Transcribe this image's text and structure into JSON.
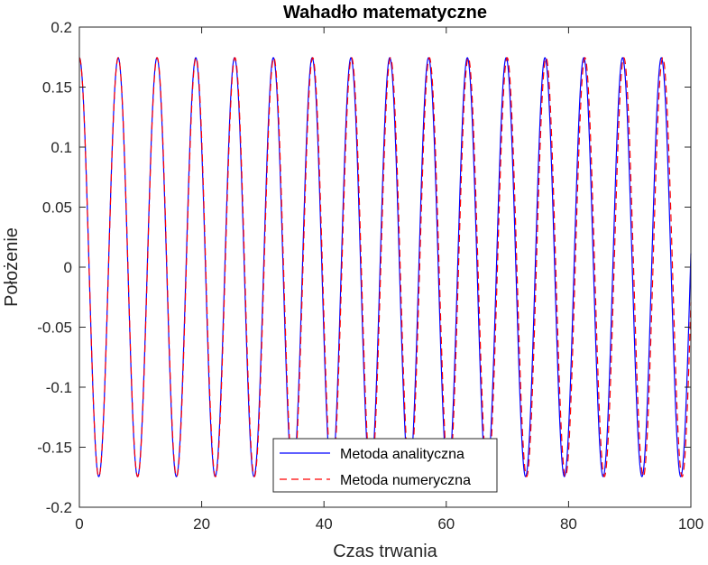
{
  "chart_data": {
    "type": "line",
    "title": "Wahadło matematyczne",
    "xlabel": "Czas trwania",
    "ylabel": "Położenie",
    "xlim": [
      0,
      100
    ],
    "ylim": [
      -0.2,
      0.2
    ],
    "xticks": [
      "0",
      "20",
      "40",
      "60",
      "80",
      "100"
    ],
    "yticks": [
      "-0.2",
      "-0.15",
      "-0.1",
      "-0.05",
      "0",
      "0.05",
      "0.1",
      "0.15",
      "0.2"
    ],
    "grid": false,
    "legend_position": "bottom-center",
    "series": [
      {
        "name": "Metoda analityczna",
        "style": "solid",
        "color": "#0000ff",
        "function": "amplitude*cos(2*pi*t/period)",
        "amplitude": 0.1745,
        "period": 6.345,
        "t_range": [
          0,
          100
        ]
      },
      {
        "name": "Metoda numeryczna",
        "style": "dashed",
        "color": "#ff0000",
        "function": "amplitude*cos(2*pi*t/period)",
        "amplitude": 0.1745,
        "period": 6.36,
        "t_range": [
          0,
          100
        ]
      }
    ]
  }
}
